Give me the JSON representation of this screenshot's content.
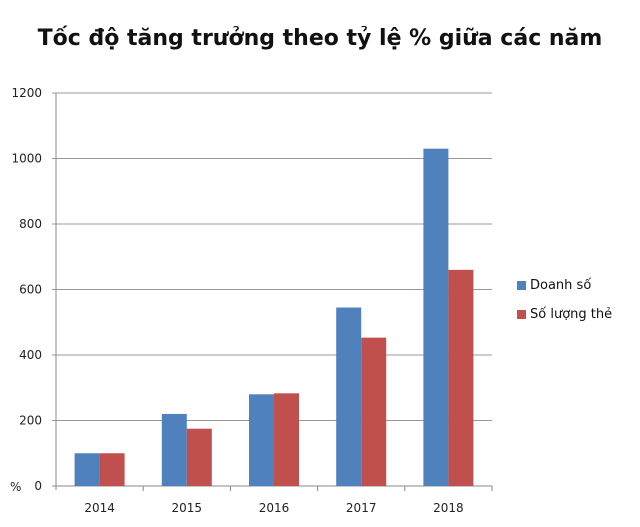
{
  "chart_data": {
    "type": "bar",
    "title": "Tốc độ tăng trưởng theo tỷ lệ % giữa các năm",
    "xlabel": "",
    "ylabel": "%",
    "ylim": [
      0,
      1200
    ],
    "yticks": [
      0,
      200,
      400,
      600,
      800,
      1000,
      1200
    ],
    "grid": true,
    "legend": "right",
    "categories": [
      "2014",
      "2015",
      "2016",
      "2017",
      "2018"
    ],
    "series": [
      {
        "name": "Doanh số",
        "color": "#4f81bd",
        "values": [
          100,
          220,
          280,
          545,
          1030
        ]
      },
      {
        "name": "Số lượng thẻ",
        "color": "#c0504d",
        "values": [
          100,
          175,
          283,
          453,
          660
        ]
      }
    ]
  }
}
